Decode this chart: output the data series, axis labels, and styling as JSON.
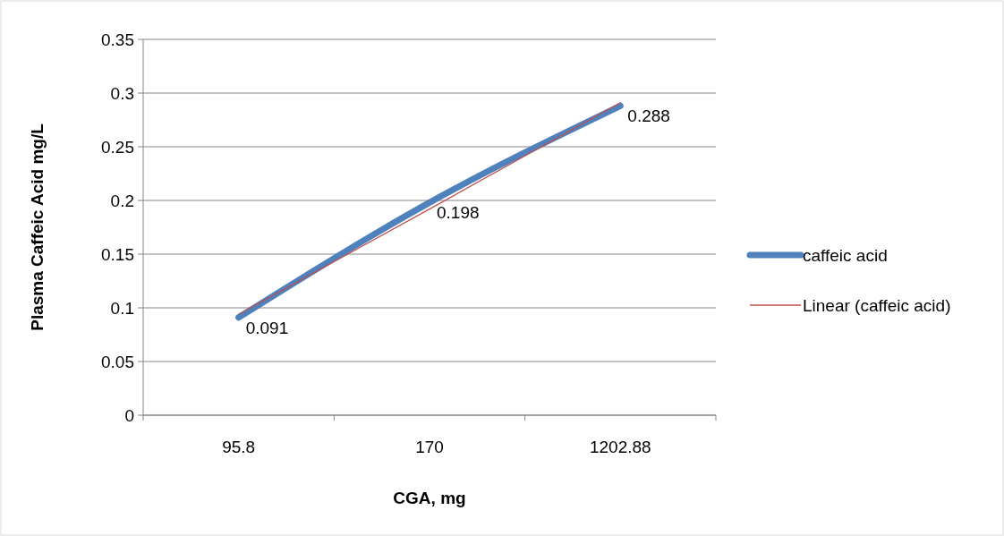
{
  "chart_data": {
    "type": "line",
    "xlabel": "CGA, mg",
    "ylabel": "Plasma Caffeic Acid mg/L",
    "categories": [
      "95.8",
      "170",
      "1202.88"
    ],
    "series": [
      {
        "name": "caffeic acid",
        "color": "#4f81bd",
        "values": [
          0.091,
          0.198,
          0.288
        ],
        "value_labels": [
          "0.091",
          "0.198",
          "0.288"
        ]
      },
      {
        "name": "Linear (caffeic acid)",
        "color": "#c0504d",
        "values": [
          0.094,
          0.192,
          0.291
        ],
        "line_style": "solid"
      }
    ],
    "ylim": [
      0,
      0.35
    ],
    "yticks": [
      0,
      0.05,
      0.1,
      0.15,
      0.2,
      0.25,
      0.3,
      0.35
    ],
    "grid": "y",
    "legend": "right",
    "marker": "none"
  }
}
